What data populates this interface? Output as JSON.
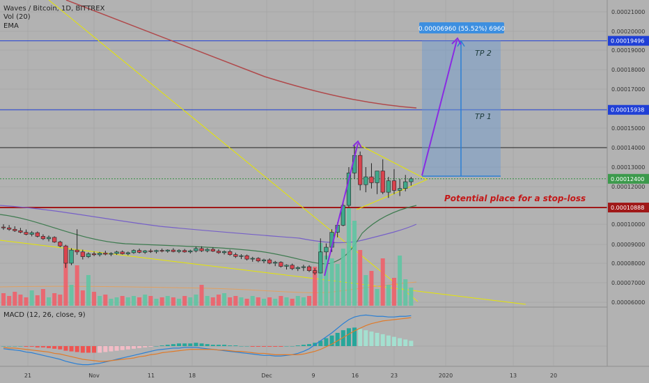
{
  "header": {
    "symbol_line": "Waves / Bitcoin, 1D, BITTREX",
    "vol_label": "Vol (20)",
    "ema_label": "EMA"
  },
  "macd_label": "MACD (12, 26, close, 9)",
  "colors": {
    "background": "#b2b2b2",
    "bull": "#3fa98a",
    "bear": "#d9434e",
    "hline_blue": "#1f3fd6",
    "support_red": "#a01818",
    "ema200": "#b0484a",
    "ema_green": "#3c7a4e",
    "ema_purple": "#7660c8",
    "trend_yellow": "#e6e600",
    "arrow": "#8a2be2",
    "target_box": "#6b9ad0",
    "macd_line": "#2a7fd4",
    "signal_line": "#e07a28"
  },
  "chart_data": {
    "type": "candlestick",
    "y_axis": {
      "ticks": [
        "0.00021000",
        "0.00020000",
        "0.00019000",
        "0.00018000",
        "0.00017000",
        "0.00016000",
        "0.00015000",
        "0.00014000",
        "0.00013000",
        "0.00012000",
        "0.00010000",
        "0.00009000",
        "0.00008000",
        "0.00007000",
        "0.00006000"
      ],
      "range": [
        5.95e-05,
        0.000215
      ]
    },
    "x_axis": {
      "ticks": [
        "21",
        "Nov",
        "11",
        "18",
        "Dec",
        "9",
        "16",
        "23",
        "2020",
        "13",
        "20"
      ]
    },
    "horizontal_lines": [
      {
        "label": "0.00019496",
        "value": 0.00019496,
        "color": "#1f3fd6"
      },
      {
        "label": "0.00015938",
        "value": 0.00015938,
        "color": "#1f3fd6"
      },
      {
        "label": "",
        "value": 0.00014,
        "color": "#222222"
      },
      {
        "label": "0.00012400",
        "value": 0.000124,
        "color": "#2f8f3f",
        "dotted": true
      },
      {
        "label": "0.00010888",
        "value": 0.00010888,
        "color": "#a01818"
      }
    ],
    "target_box": {
      "label": "0.00006960 (55.52%) 6960",
      "from": 0.00012536,
      "to": 0.00019496,
      "tp_labels": [
        "TP 2",
        "TP 1"
      ]
    },
    "annotation": "Potential place for a stop-loss",
    "candles": [
      [
        9.86e-05,
        0.0001,
        9.72e-05,
        9.82e-05
      ],
      [
        9.82e-05,
        9.96e-05,
        9.68e-05,
        9.75e-05
      ],
      [
        9.75e-05,
        9.9e-05,
        9.62e-05,
        9.68e-05
      ],
      [
        9.68e-05,
        9.82e-05,
        9.55e-05,
        9.6e-05
      ],
      [
        9.6e-05,
        9.74e-05,
        9.45e-05,
        9.5e-05
      ],
      [
        9.5e-05,
        9.66e-05,
        9.4e-05,
        9.58e-05
      ],
      [
        9.58e-05,
        9.64e-05,
        9.35e-05,
        9.4e-05
      ],
      [
        9.4e-05,
        9.5e-05,
        9.22e-05,
        9.28e-05
      ],
      [
        9.28e-05,
        9.44e-05,
        9.15e-05,
        9.35e-05
      ],
      [
        9.35e-05,
        9.4e-05,
        9.08e-05,
        9.12e-05
      ],
      [
        9.12e-05,
        9.18e-05,
        8.85e-05,
        8.92e-05
      ],
      [
        8.92e-05,
        8.98e-05,
        7.76e-05,
        8e-05
      ],
      [
        8e-05,
        8.8e-05,
        7.9e-05,
        8.7e-05
      ],
      [
        8.7e-05,
        9.75e-05,
        8.45e-05,
        8.6e-05
      ],
      [
        8.6e-05,
        8.72e-05,
        8.2e-05,
        8.35e-05
      ],
      [
        8.35e-05,
        8.58e-05,
        8.28e-05,
        8.5e-05
      ],
      [
        8.5e-05,
        8.62e-05,
        8.38e-05,
        8.45e-05
      ],
      [
        8.45e-05,
        8.6e-05,
        8.36e-05,
        8.54e-05
      ],
      [
        8.54e-05,
        8.66e-05,
        8.42e-05,
        8.48e-05
      ],
      [
        8.48e-05,
        8.58e-05,
        8.38e-05,
        8.52e-05
      ],
      [
        8.52e-05,
        8.66e-05,
        8.45e-05,
        8.6e-05
      ],
      [
        8.6e-05,
        8.68e-05,
        8.46e-05,
        8.5e-05
      ],
      [
        8.5e-05,
        8.62e-05,
        8.42e-05,
        8.56e-05
      ],
      [
        8.56e-05,
        8.74e-05,
        8.5e-05,
        8.68e-05
      ],
      [
        8.68e-05,
        8.78e-05,
        8.52e-05,
        8.58e-05
      ],
      [
        8.58e-05,
        8.7e-05,
        8.5e-05,
        8.66e-05
      ],
      [
        8.66e-05,
        8.76e-05,
        8.55e-05,
        8.62e-05
      ],
      [
        8.62e-05,
        8.72e-05,
        8.52e-05,
        8.68e-05
      ],
      [
        8.68e-05,
        8.78e-05,
        8.58e-05,
        8.64e-05
      ],
      [
        8.64e-05,
        8.74e-05,
        8.56e-05,
        8.7e-05
      ],
      [
        8.7e-05,
        8.8e-05,
        8.58e-05,
        8.62e-05
      ],
      [
        8.62e-05,
        8.74e-05,
        8.54e-05,
        8.68e-05
      ],
      [
        8.68e-05,
        8.76e-05,
        8.56e-05,
        8.6e-05
      ],
      [
        8.6e-05,
        8.72e-05,
        8.52e-05,
        8.66e-05
      ],
      [
        8.66e-05,
        8.88e-05,
        8.58e-05,
        8.78e-05
      ],
      [
        8.78e-05,
        8.9e-05,
        8.6e-05,
        8.66e-05
      ],
      [
        8.66e-05,
        8.8e-05,
        8.58e-05,
        8.74e-05
      ],
      [
        8.74e-05,
        8.84e-05,
        8.6e-05,
        8.64e-05
      ],
      [
        8.64e-05,
        8.74e-05,
        8.5e-05,
        8.56e-05
      ],
      [
        8.56e-05,
        8.68e-05,
        8.46e-05,
        8.62e-05
      ],
      [
        8.62e-05,
        8.72e-05,
        8.4e-05,
        8.46e-05
      ],
      [
        8.46e-05,
        8.56e-05,
        8.28e-05,
        8.36e-05
      ],
      [
        8.36e-05,
        8.48e-05,
        8.22e-05,
        8.4e-05
      ],
      [
        8.4e-05,
        8.46e-05,
        8.15e-05,
        8.22e-05
      ],
      [
        8.22e-05,
        8.34e-05,
        8.08e-05,
        8.26e-05
      ],
      [
        8.26e-05,
        8.32e-05,
        8.05e-05,
        8.12e-05
      ],
      [
        8.12e-05,
        8.24e-05,
        8e-05,
        8.18e-05
      ],
      [
        8.18e-05,
        8.26e-05,
        7.95e-05,
        8e-05
      ],
      [
        8e-05,
        8.12e-05,
        7.85e-05,
        8.05e-05
      ],
      [
        8.05e-05,
        8.1e-05,
        7.78e-05,
        7.84e-05
      ],
      [
        7.84e-05,
        7.94e-05,
        7.68e-05,
        7.9e-05
      ],
      [
        7.9e-05,
        7.98e-05,
        7.65e-05,
        7.72e-05
      ],
      [
        7.72e-05,
        7.84e-05,
        7.6e-05,
        7.78e-05
      ],
      [
        7.78e-05,
        7.92e-05,
        7.6e-05,
        7.82e-05
      ],
      [
        7.82e-05,
        7.9e-05,
        7.55e-05,
        7.62e-05
      ],
      [
        7.62e-05,
        7.75e-05,
        7.4e-05,
        7.5e-05
      ],
      [
        7.5e-05,
        9.3e-05,
        7.48e-05,
        8.6e-05
      ],
      [
        8.6e-05,
        9.05e-05,
        8.2e-05,
        8.85e-05
      ],
      [
        8.85e-05,
        9.75e-05,
        8.6e-05,
        9.6e-05
      ],
      [
        9.6e-05,
        0.000101,
        9.35e-05,
        9.95e-05
      ],
      [
        9.95e-05,
        0.000112,
        9.9e-05,
        0.00011
      ],
      [
        0.00011,
        0.00013,
        0.000109,
        0.000127
      ],
      [
        0.000127,
        0.000142,
        0.000124,
        0.000136
      ],
      [
        0.000136,
        0.000138,
        0.000118,
        0.000121
      ],
      [
        0.000121,
        0.00013,
        0.000117,
        0.000125
      ],
      [
        0.000125,
        0.000132,
        0.000119,
        0.000122
      ],
      [
        0.000122,
        0.000128,
        0.000116,
        0.000128
      ],
      [
        0.000128,
        0.000134,
        0.000116,
        0.000117
      ],
      [
        0.000117,
        0.000125,
        0.000114,
        0.000123
      ],
      [
        0.000123,
        0.000129,
        0.000116,
        0.000118
      ],
      [
        0.000118,
        0.000124,
        0.000115,
        0.000119
      ],
      [
        0.000119,
        0.000126,
        0.0001175,
        0.0001225
      ],
      [
        0.0001225,
        0.000125,
        0.0001205,
        0.000124
      ]
    ],
    "volume": [
      18,
      14,
      20,
      16,
      12,
      22,
      15,
      24,
      12,
      18,
      16,
      62,
      30,
      58,
      22,
      44,
      20,
      14,
      16,
      10,
      12,
      14,
      12,
      14,
      12,
      16,
      14,
      10,
      12,
      14,
      12,
      10,
      14,
      12,
      16,
      30,
      14,
      12,
      16,
      18,
      12,
      14,
      12,
      10,
      14,
      12,
      10,
      12,
      10,
      14,
      12,
      10,
      14,
      12,
      14,
      56,
      90,
      72,
      68,
      60,
      82,
      140,
      122,
      80,
      44,
      50,
      24,
      68,
      30,
      40,
      72,
      38,
      26
    ],
    "macd": {
      "hist": [
        0,
        0,
        0,
        0,
        -1,
        -1,
        -2,
        -2,
        -3,
        -4,
        -5,
        -7,
        -8,
        -9,
        -10,
        -10,
        -10,
        -10,
        -9,
        -8,
        -7,
        -6,
        -5,
        -4,
        -3,
        -2,
        -1,
        0,
        1,
        2,
        3,
        4,
        4,
        4,
        5,
        4,
        3,
        2,
        2,
        2,
        1,
        1,
        0,
        0,
        -1,
        -1,
        -1,
        -1,
        -1,
        -1,
        0,
        0,
        1,
        2,
        3,
        5,
        8,
        12,
        16,
        20,
        24,
        27,
        28,
        26,
        24,
        22,
        20,
        18,
        16,
        14,
        12,
        10,
        8
      ],
      "macd_line": [
        -4,
        -5,
        -6,
        -7,
        -9,
        -10,
        -12,
        -14,
        -16,
        -18,
        -20,
        -23,
        -25,
        -27,
        -28,
        -28,
        -27,
        -26,
        -24,
        -22,
        -20,
        -18,
        -16,
        -14,
        -12,
        -10,
        -8,
        -6,
        -5,
        -4,
        -3,
        -3,
        -2,
        -2,
        -2,
        -3,
        -4,
        -5,
        -6,
        -7,
        -8,
        -9,
        -10,
        -11,
        -12,
        -13,
        -14,
        -14,
        -15,
        -15,
        -14,
        -13,
        -11,
        -8,
        -4,
        2,
        8,
        14,
        20,
        27,
        34,
        40,
        44,
        46,
        47,
        46,
        45,
        45,
        44,
        44,
        45,
        45,
        46
      ],
      "signal_line": [
        -2,
        -3,
        -3,
        -4,
        -5,
        -6,
        -7,
        -8,
        -9,
        -11,
        -12,
        -14,
        -16,
        -18,
        -20,
        -21,
        -22,
        -23,
        -23,
        -22,
        -21,
        -20,
        -19,
        -18,
        -16,
        -15,
        -13,
        -12,
        -10,
        -9,
        -8,
        -7,
        -6,
        -5,
        -5,
        -5,
        -5,
        -5,
        -6,
        -6,
        -7,
        -8,
        -8,
        -9,
        -10,
        -11,
        -11,
        -12,
        -13,
        -13,
        -13,
        -13,
        -13,
        -12,
        -10,
        -8,
        -5,
        -1,
        3,
        8,
        13,
        18,
        23,
        27,
        31,
        34,
        36,
        38,
        39,
        40,
        41,
        42,
        43
      ]
    }
  }
}
